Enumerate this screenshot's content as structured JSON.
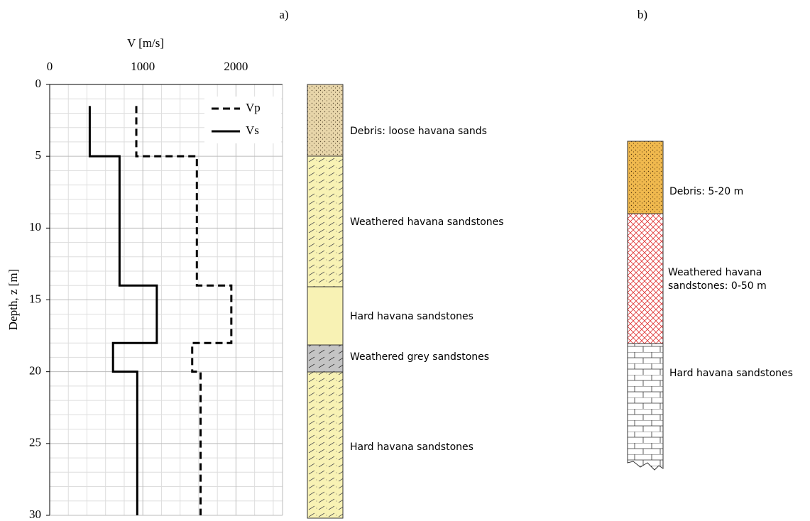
{
  "chart_data": {
    "type": "line",
    "panel_label": "a)",
    "x_label": "V [m/s]",
    "y_label": "Depth, z [m]",
    "xlim": [
      0,
      2500
    ],
    "xticks": [
      0,
      1000,
      2000
    ],
    "xminorticks": [
      200,
      400,
      600,
      800,
      1200,
      1400,
      1600,
      1800,
      2200,
      2400
    ],
    "ylim": [
      0,
      30
    ],
    "yticks": [
      0,
      5,
      10,
      15,
      20,
      25,
      30
    ],
    "yminorticks": [
      1,
      2,
      3,
      4,
      6,
      7,
      8,
      9,
      11,
      12,
      13,
      14,
      16,
      17,
      18,
      19,
      21,
      22,
      23,
      24,
      26,
      27,
      28,
      29
    ],
    "y_inverted": true,
    "grid": true,
    "depth": [
      1.5,
      5,
      5,
      14,
      14,
      18,
      18,
      20,
      20,
      30
    ],
    "series": [
      {
        "name": "Vp",
        "color": "#000000",
        "dash": true,
        "values": [
          930,
          930,
          1580,
          1580,
          1950,
          1950,
          1530,
          1530,
          1620,
          1620
        ]
      },
      {
        "name": "Vs",
        "color": "#000000",
        "dash": false,
        "values": [
          430,
          430,
          750,
          750,
          1150,
          1150,
          680,
          680,
          940,
          940
        ]
      }
    ]
  },
  "column_a": {
    "layers": [
      "Debris: loose havana sands",
      "Weathered havana sandstones",
      "Hard havana sandstones",
      "Weathered grey sandstones",
      "Hard havana sandstones"
    ]
  },
  "column_b": {
    "panel_label": "b)",
    "layers": [
      "Debris: 5-20 m",
      "Weathered havana sandstones: 0-50 m",
      "Hard havana sandstones"
    ]
  }
}
